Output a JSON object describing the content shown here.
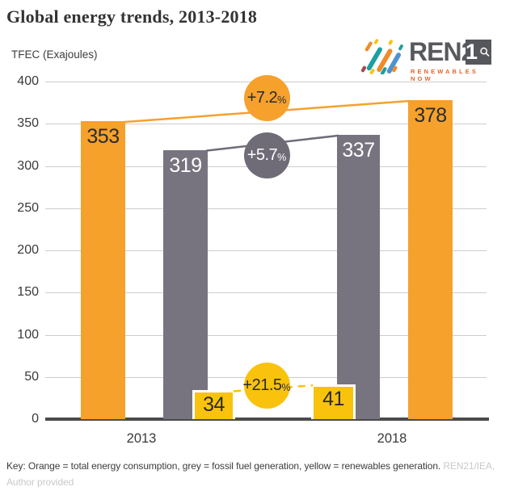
{
  "header": {
    "title": "Global energy trends, 2013-2018",
    "unit_label": "TFEC (Exajoules)"
  },
  "logo": {
    "brand_prefix": "REN2",
    "brand_suffix": "1",
    "tagline": "RENEWABLES NOW"
  },
  "chart_data": {
    "type": "bar",
    "title": "Global energy trends, 2013-2018",
    "ylabel": "TFEC (Exajoules)",
    "categories": [
      "2013",
      "2018"
    ],
    "series": [
      {
        "name": "total energy consumption",
        "color": "#F5A12C",
        "badge_color": "#F5A12C",
        "label_color": "#2b2b2b",
        "badge_text_color": "#2b2b2b",
        "values": [
          353,
          378
        ],
        "change": "+7.2%"
      },
      {
        "name": "fossil fuel generation",
        "color": "#77747F",
        "badge_color": "#6F6C78",
        "label_color": "#ffffff",
        "badge_text_color": "#ffffff",
        "values": [
          319,
          337
        ],
        "change": "+5.7%"
      },
      {
        "name": "renewables generation",
        "color": "#F9C20D",
        "badge_color": "#F9C20D",
        "label_color": "#2b2b2b",
        "badge_text_color": "#2b2b2b",
        "values": [
          34,
          41
        ],
        "change": "+21.5%"
      }
    ],
    "ylim": [
      0,
      400
    ],
    "ytick_step": 50,
    "grid": true,
    "legend_position": "none"
  },
  "footer": {
    "key": "Key: Orange = total energy consumption, grey = fossil fuel generation, yellow = renewables generation.",
    "credit1": "REN21/IEA,",
    "credit2": "Author provided"
  }
}
